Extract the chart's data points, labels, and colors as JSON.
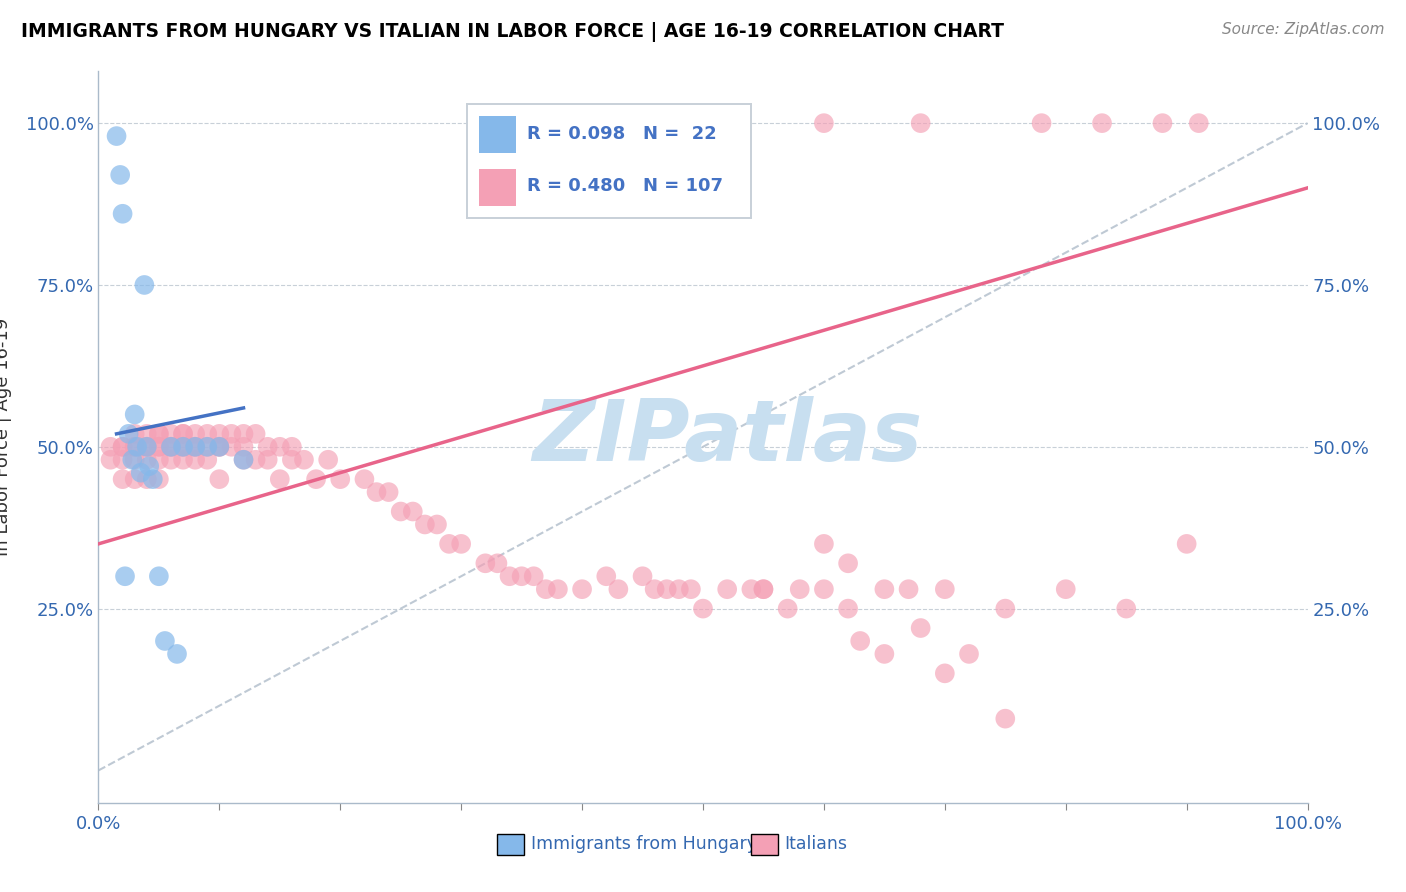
{
  "title": "IMMIGRANTS FROM HUNGARY VS ITALIAN IN LABOR FORCE | AGE 16-19 CORRELATION CHART",
  "source": "Source: ZipAtlas.com",
  "ylabel": "In Labor Force | Age 16-19",
  "hungary_color": "#85B8EA",
  "italy_color": "#F4A0B5",
  "hungary_line_color": "#4472C4",
  "italy_line_color": "#E8648A",
  "diagonal_color": "#B8C4D0",
  "legend_color": "#4472C4",
  "hungary_R": 0.098,
  "hungary_N": 22,
  "italy_R": 0.48,
  "italy_N": 107,
  "hungary_x": [
    1.5,
    1.8,
    2.0,
    2.2,
    2.5,
    2.8,
    3.0,
    3.2,
    3.5,
    3.8,
    4.0,
    4.2,
    4.5,
    5.0,
    5.5,
    6.0,
    6.5,
    7.0,
    8.0,
    9.0,
    10.0,
    12.0
  ],
  "hungary_y": [
    98,
    92,
    86,
    30,
    52,
    48,
    55,
    50,
    46,
    75,
    50,
    47,
    45,
    30,
    20,
    50,
    18,
    50,
    50,
    50,
    50,
    48
  ],
  "italy_x": [
    1,
    1,
    2,
    2,
    2,
    2,
    3,
    3,
    3,
    3,
    3,
    4,
    4,
    4,
    4,
    4,
    5,
    5,
    5,
    5,
    5,
    5,
    6,
    6,
    6,
    6,
    7,
    7,
    7,
    7,
    7,
    8,
    8,
    8,
    8,
    9,
    9,
    9,
    10,
    10,
    10,
    10,
    11,
    11,
    12,
    12,
    12,
    13,
    13,
    14,
    14,
    15,
    15,
    16,
    16,
    17,
    18,
    19,
    20,
    22,
    23,
    24,
    25,
    26,
    27,
    28,
    29,
    30,
    32,
    33,
    34,
    35,
    36,
    37,
    38,
    40,
    42,
    43,
    45,
    46,
    47,
    48,
    49,
    50,
    52,
    54,
    55,
    57,
    58,
    60,
    62,
    65,
    67,
    70,
    75,
    80,
    85,
    90,
    63,
    65,
    70,
    75,
    60,
    62,
    55,
    68,
    72
  ],
  "italy_y": [
    50,
    48,
    50,
    50,
    48,
    45,
    52,
    50,
    50,
    48,
    45,
    52,
    50,
    50,
    48,
    45,
    52,
    52,
    50,
    50,
    48,
    45,
    52,
    50,
    50,
    48,
    52,
    52,
    50,
    50,
    48,
    52,
    50,
    50,
    48,
    52,
    50,
    48,
    52,
    50,
    50,
    45,
    52,
    50,
    52,
    50,
    48,
    52,
    48,
    50,
    48,
    50,
    45,
    50,
    48,
    48,
    45,
    48,
    45,
    45,
    43,
    43,
    40,
    40,
    38,
    38,
    35,
    35,
    32,
    32,
    30,
    30,
    30,
    28,
    28,
    28,
    30,
    28,
    30,
    28,
    28,
    28,
    28,
    25,
    28,
    28,
    28,
    25,
    28,
    28,
    25,
    28,
    28,
    28,
    25,
    28,
    25,
    35,
    20,
    18,
    15,
    8,
    35,
    32,
    28,
    22,
    18
  ],
  "italy_top_x": [
    60,
    68,
    78,
    83,
    88,
    91
  ],
  "italy_top_y": [
    100,
    100,
    100,
    100,
    100,
    100
  ],
  "xlim": [
    0,
    100
  ],
  "ylim": [
    -5,
    108
  ]
}
